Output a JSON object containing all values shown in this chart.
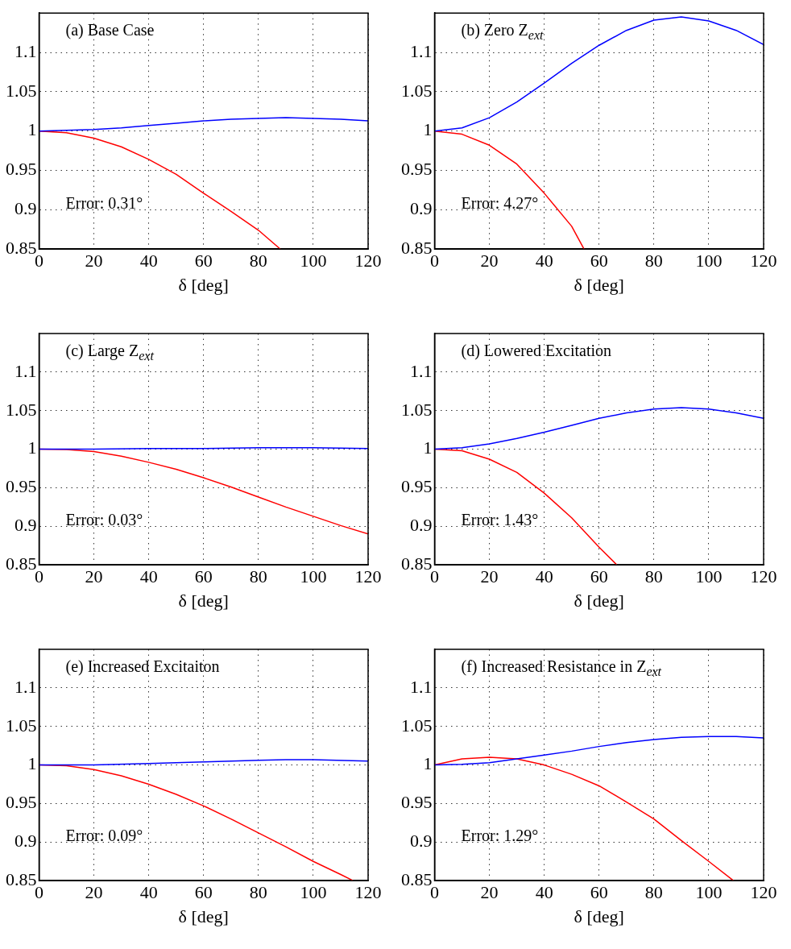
{
  "chart_data": [
    {
      "type": "line",
      "title": "(a) Base Case",
      "xlabel": "δ [deg]",
      "annotations": [
        "Error: 0.31°"
      ],
      "xlim": [
        0,
        120
      ],
      "ylim": [
        0.85,
        1.15
      ],
      "xticks": [
        0,
        20,
        40,
        60,
        80,
        100,
        120
      ],
      "yticks": [
        0.85,
        0.9,
        0.95,
        1,
        1.05,
        1.1
      ],
      "grid": true,
      "series": [
        {
          "color": "#0000ff",
          "x": [
            0,
            10,
            20,
            30,
            40,
            50,
            60,
            70,
            80,
            90,
            100,
            110,
            120
          ],
          "values": [
            1,
            1.001,
            1.002,
            1.004,
            1.007,
            1.01,
            1.013,
            1.015,
            1.016,
            1.017,
            1.016,
            1.015,
            1.013
          ]
        },
        {
          "color": "#ff0000",
          "x": [
            0,
            10,
            20,
            30,
            40,
            50,
            60,
            70,
            80,
            88
          ],
          "values": [
            1,
            0.998,
            0.991,
            0.98,
            0.964,
            0.945,
            0.921,
            0.898,
            0.874,
            0.85
          ]
        }
      ]
    },
    {
      "type": "line",
      "title": "(b) Zero Z$_{ext}$",
      "xlabel": "δ [deg]",
      "annotations": [
        "Error: 4.27°"
      ],
      "xlim": [
        0,
        120
      ],
      "ylim": [
        0.85,
        1.15
      ],
      "xticks": [
        0,
        20,
        40,
        60,
        80,
        100,
        120
      ],
      "yticks": [
        0.85,
        0.9,
        0.95,
        1,
        1.05,
        1.1
      ],
      "grid": true,
      "series": [
        {
          "color": "#0000ff",
          "x": [
            0,
            10,
            20,
            30,
            40,
            50,
            60,
            70,
            80,
            90,
            100,
            110,
            120
          ],
          "values": [
            1,
            1.004,
            1.017,
            1.037,
            1.061,
            1.086,
            1.109,
            1.128,
            1.141,
            1.145,
            1.14,
            1.128,
            1.11
          ]
        },
        {
          "color": "#ff0000",
          "x": [
            0,
            10,
            20,
            30,
            40,
            50,
            54.5
          ],
          "values": [
            1,
            0.996,
            0.982,
            0.958,
            0.921,
            0.879,
            0.85
          ]
        }
      ]
    },
    {
      "type": "line",
      "title": "(c) Large Z$_{ext}$",
      "xlabel": "δ [deg]",
      "annotations": [
        "Error: 0.03°"
      ],
      "xlim": [
        0,
        120
      ],
      "ylim": [
        0.85,
        1.15
      ],
      "xticks": [
        0,
        20,
        40,
        60,
        80,
        100,
        120
      ],
      "yticks": [
        0.85,
        0.9,
        0.95,
        1,
        1.05,
        1.1
      ],
      "grid": true,
      "series": [
        {
          "color": "#0000ff",
          "x": [
            0,
            20,
            40,
            60,
            80,
            90,
            100,
            120
          ],
          "values": [
            1,
            1,
            1.001,
            1.001,
            1.002,
            1.002,
            1.002,
            1.001
          ]
        },
        {
          "color": "#ff0000",
          "x": [
            0,
            10,
            20,
            30,
            40,
            50,
            60,
            70,
            80,
            90,
            100,
            110,
            120
          ],
          "values": [
            1,
            0.9995,
            0.997,
            0.991,
            0.983,
            0.974,
            0.963,
            0.951,
            0.938,
            0.925,
            0.913,
            0.901,
            0.89
          ]
        }
      ]
    },
    {
      "type": "line",
      "title": "(d) Lowered Excitation",
      "xlabel": "δ [deg]",
      "annotations": [
        "Error: 1.43°"
      ],
      "xlim": [
        0,
        120
      ],
      "ylim": [
        0.85,
        1.15
      ],
      "xticks": [
        0,
        20,
        40,
        60,
        80,
        100,
        120
      ],
      "yticks": [
        0.85,
        0.9,
        0.95,
        1,
        1.05,
        1.1
      ],
      "grid": true,
      "series": [
        {
          "color": "#0000ff",
          "x": [
            0,
            10,
            20,
            30,
            40,
            50,
            60,
            70,
            80,
            90,
            100,
            110,
            120
          ],
          "values": [
            1,
            1.002,
            1.007,
            1.014,
            1.022,
            1.031,
            1.04,
            1.047,
            1.052,
            1.054,
            1.052,
            1.047,
            1.04
          ]
        },
        {
          "color": "#ff0000",
          "x": [
            0,
            10,
            20,
            30,
            40,
            50,
            60,
            66.5
          ],
          "values": [
            1,
            0.998,
            0.987,
            0.97,
            0.943,
            0.911,
            0.873,
            0.85
          ]
        }
      ]
    },
    {
      "type": "line",
      "title": "(e) Increased Excitaiton",
      "xlabel": "δ [deg]",
      "annotations": [
        "Error: 0.09°"
      ],
      "xlim": [
        0,
        120
      ],
      "ylim": [
        0.85,
        1.15
      ],
      "xticks": [
        0,
        20,
        40,
        60,
        80,
        100,
        120
      ],
      "yticks": [
        0.85,
        0.9,
        0.95,
        1,
        1.05,
        1.1
      ],
      "grid": true,
      "series": [
        {
          "color": "#0000ff",
          "x": [
            0,
            20,
            40,
            60,
            80,
            90,
            100,
            120
          ],
          "values": [
            1,
            1,
            1.002,
            1.004,
            1.006,
            1.007,
            1.007,
            1.005
          ]
        },
        {
          "color": "#ff0000",
          "x": [
            0,
            10,
            20,
            30,
            40,
            50,
            60,
            70,
            80,
            90,
            100,
            110,
            114.5
          ],
          "values": [
            1,
            0.999,
            0.994,
            0.986,
            0.975,
            0.962,
            0.947,
            0.93,
            0.912,
            0.894,
            0.875,
            0.858,
            0.85
          ]
        }
      ]
    },
    {
      "type": "line",
      "title": "(f) Increased Resistance in Z$_{ext}$",
      "xlabel": "δ [deg]",
      "annotations": [
        "Error: 1.29°"
      ],
      "xlim": [
        0,
        120
      ],
      "ylim": [
        0.85,
        1.15
      ],
      "xticks": [
        0,
        20,
        40,
        60,
        80,
        100,
        120
      ],
      "yticks": [
        0.85,
        0.9,
        0.95,
        1,
        1.05,
        1.1
      ],
      "grid": true,
      "series": [
        {
          "color": "#0000ff",
          "x": [
            0,
            10,
            20,
            30,
            40,
            50,
            60,
            70,
            80,
            90,
            100,
            110,
            120
          ],
          "values": [
            1,
            1.001,
            1.003,
            1.008,
            1.013,
            1.018,
            1.024,
            1.029,
            1.033,
            1.036,
            1.037,
            1.037,
            1.035
          ]
        },
        {
          "color": "#ff0000",
          "x": [
            0,
            10,
            20,
            30,
            40,
            50,
            60,
            70,
            80,
            90,
            100,
            109
          ],
          "values": [
            1,
            1.008,
            1.01,
            1.008,
            1,
            0.988,
            0.973,
            0.952,
            0.93,
            0.902,
            0.875,
            0.85
          ]
        }
      ]
    }
  ]
}
